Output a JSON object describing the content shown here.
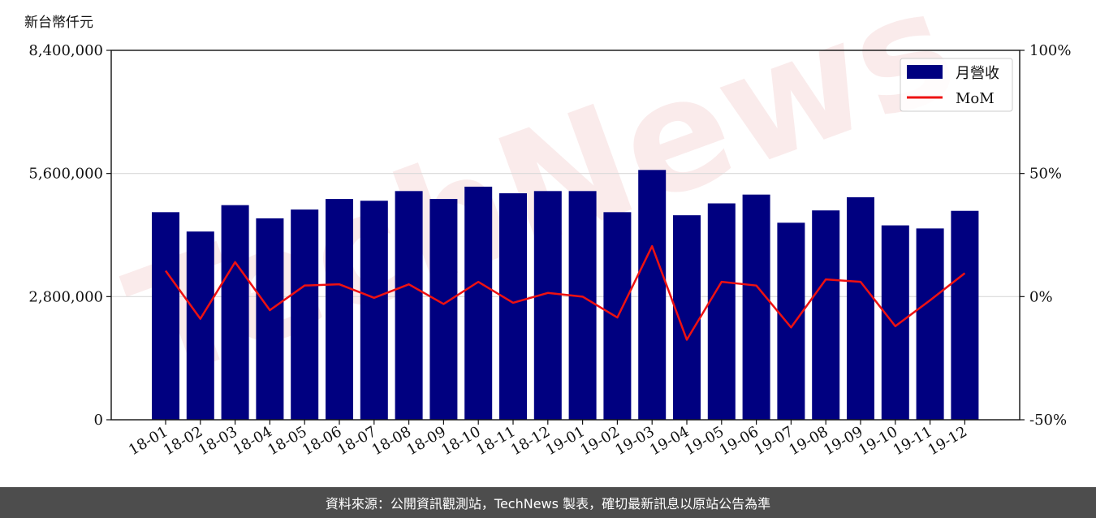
{
  "chart_data": {
    "type": "bar",
    "unit_label": "新台幣仟元",
    "categories": [
      "18-01",
      "18-02",
      "18-03",
      "18-04",
      "18-05",
      "18-06",
      "18-07",
      "18-08",
      "18-09",
      "18-10",
      "18-11",
      "18-12",
      "19-01",
      "19-02",
      "19-03",
      "19-04",
      "19-05",
      "19-06",
      "19-07",
      "19-08",
      "19-09",
      "19-10",
      "19-11",
      "19-12"
    ],
    "series": [
      {
        "name": "月營收",
        "axis": "left",
        "type": "bar",
        "color": "#000080",
        "values": [
          4720000,
          4280000,
          4880000,
          4580000,
          4780000,
          5020000,
          4980000,
          5200000,
          5020000,
          5300000,
          5150000,
          5200000,
          5200000,
          4720000,
          5680000,
          4650000,
          4920000,
          5120000,
          4480000,
          4760000,
          5060000,
          4420000,
          4350000,
          4750000
        ]
      },
      {
        "name": "MoM",
        "axis": "right",
        "type": "line",
        "color": "#ee1111",
        "values": [
          10.5,
          -9,
          14,
          -5.5,
          4.5,
          5,
          -0.5,
          5,
          -3,
          6,
          -2.5,
          1.5,
          0,
          -8.5,
          20.5,
          -17.5,
          6,
          4.5,
          -12.5,
          7,
          6,
          -12,
          -1.5,
          9.5
        ]
      }
    ],
    "y_left": {
      "min": 0,
      "max": 8400000,
      "ticks": [
        0,
        2800000,
        5600000,
        8400000
      ],
      "tick_labels": [
        "0",
        "2,800,000",
        "5,600,000",
        "8,400,000"
      ]
    },
    "y_right": {
      "min": -50,
      "max": 100,
      "ticks": [
        -50,
        0,
        50,
        100
      ],
      "tick_labels": [
        "-50%",
        "0%",
        "50%",
        "100%"
      ]
    },
    "grid": "horizontal",
    "legend": "top-right"
  },
  "watermark": "TechNews",
  "footer": {
    "source": "資料來源：公開資訊觀測站，TechNews 製表，確切最新訊息以原站公告為準"
  }
}
